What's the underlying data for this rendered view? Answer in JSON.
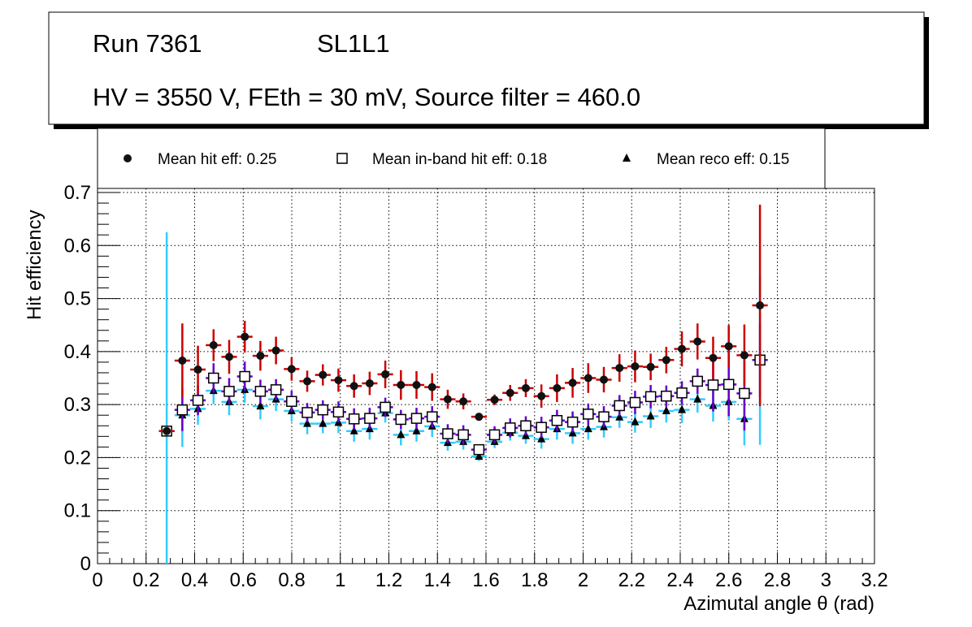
{
  "chart_data": {
    "type": "scatter",
    "title_lines": [
      "Run 7361",
      "SL1L1",
      "HV = 3550 V, FEth = 30 mV, Source filter = 460.0"
    ],
    "xlabel": "Azimutal angle θ (rad)",
    "ylabel": "Hit efficiency",
    "xlim": [
      0,
      3.2
    ],
    "ylim": [
      0,
      0.7
    ],
    "xticks": [
      "0",
      "0.2",
      "0.4",
      "0.6",
      "0.8",
      "1",
      "1.2",
      "1.4",
      "1.6",
      "1.8",
      "2",
      "2.2",
      "2.4",
      "2.6",
      "2.8",
      "3",
      "3.2"
    ],
    "yticks": [
      "0",
      "0.1",
      "0.2",
      "0.3",
      "0.4",
      "0.5",
      "0.6",
      "0.7"
    ],
    "grid": true,
    "legend_position": "top",
    "x_start": 0.285,
    "x_step": 0.0643,
    "bin_halfwidth": 0.032,
    "series": [
      {
        "name": "Mean hit  eff: 0.25",
        "marker": "circle",
        "color": "#cc0000",
        "values": [
          0.25,
          0.383,
          0.366,
          0.412,
          0.39,
          0.428,
          0.392,
          0.402,
          0.367,
          0.344,
          0.356,
          0.346,
          0.335,
          0.34,
          0.357,
          0.337,
          0.337,
          0.333,
          0.31,
          0.306,
          0.277,
          0.309,
          0.322,
          0.331,
          0.316,
          0.331,
          0.341,
          0.35,
          0.347,
          0.369,
          0.372,
          0.371,
          0.384,
          0.405,
          0.419,
          0.388,
          0.41,
          0.393,
          0.487
        ],
        "errors": [
          0,
          0.07,
          0.045,
          0.03,
          0.032,
          0.03,
          0.028,
          0.026,
          0.022,
          0.02,
          0.02,
          0.022,
          0.022,
          0.022,
          0.026,
          0.028,
          0.026,
          0.026,
          0.018,
          0.015,
          0.005,
          0.01,
          0.015,
          0.017,
          0.022,
          0.026,
          0.028,
          0.028,
          0.024,
          0.026,
          0.03,
          0.025,
          0.025,
          0.033,
          0.034,
          0.04,
          0.04,
          0.058,
          0.19
        ]
      },
      {
        "name": "Mean in-band hit eff: 0.18",
        "marker": "open-square",
        "color": "#6600cc",
        "values": [
          0.25,
          0.29,
          0.308,
          0.35,
          0.325,
          0.353,
          0.325,
          0.328,
          0.306,
          0.285,
          0.29,
          0.286,
          0.273,
          0.274,
          0.295,
          0.272,
          0.274,
          0.277,
          0.245,
          0.243,
          0.215,
          0.243,
          0.256,
          0.26,
          0.257,
          0.27,
          0.267,
          0.282,
          0.277,
          0.298,
          0.304,
          0.315,
          0.316,
          0.322,
          0.344,
          0.337,
          0.338,
          0.321,
          0.384
        ],
        "errors": [
          0,
          0.04,
          0.028,
          0.028,
          0.025,
          0.028,
          0.022,
          0.02,
          0.02,
          0.018,
          0.018,
          0.02,
          0.02,
          0.02,
          0.018,
          0.018,
          0.02,
          0.02,
          0.018,
          0.018,
          0.01,
          0.016,
          0.018,
          0.018,
          0.02,
          0.02,
          0.02,
          0.02,
          0.02,
          0.02,
          0.022,
          0.022,
          0.02,
          0.022,
          0.024,
          0.05,
          0.06,
          0.07,
          0.07
        ]
      },
      {
        "name": "Mean reco eff: 0.15",
        "marker": "triangle",
        "color": "#33ccff",
        "values": [
          0.25,
          0.28,
          0.292,
          0.326,
          0.305,
          0.328,
          0.297,
          0.31,
          0.288,
          0.264,
          0.264,
          0.266,
          0.25,
          0.254,
          0.284,
          0.243,
          0.25,
          0.259,
          0.228,
          0.23,
          0.202,
          0.23,
          0.247,
          0.241,
          0.235,
          0.254,
          0.246,
          0.254,
          0.258,
          0.276,
          0.267,
          0.278,
          0.288,
          0.29,
          0.31,
          0.298,
          0.305,
          0.273,
          0.384
        ],
        "errors": [
          0.375,
          0.06,
          0.03,
          0.025,
          0.025,
          0.025,
          0.025,
          0.022,
          0.02,
          0.02,
          0.018,
          0.02,
          0.02,
          0.02,
          0.018,
          0.02,
          0.02,
          0.02,
          0.015,
          0.015,
          0.008,
          0.012,
          0.015,
          0.015,
          0.018,
          0.02,
          0.02,
          0.02,
          0.02,
          0.02,
          0.02,
          0.022,
          0.022,
          0.025,
          0.025,
          0.03,
          0.035,
          0.05,
          0.16
        ]
      }
    ]
  }
}
